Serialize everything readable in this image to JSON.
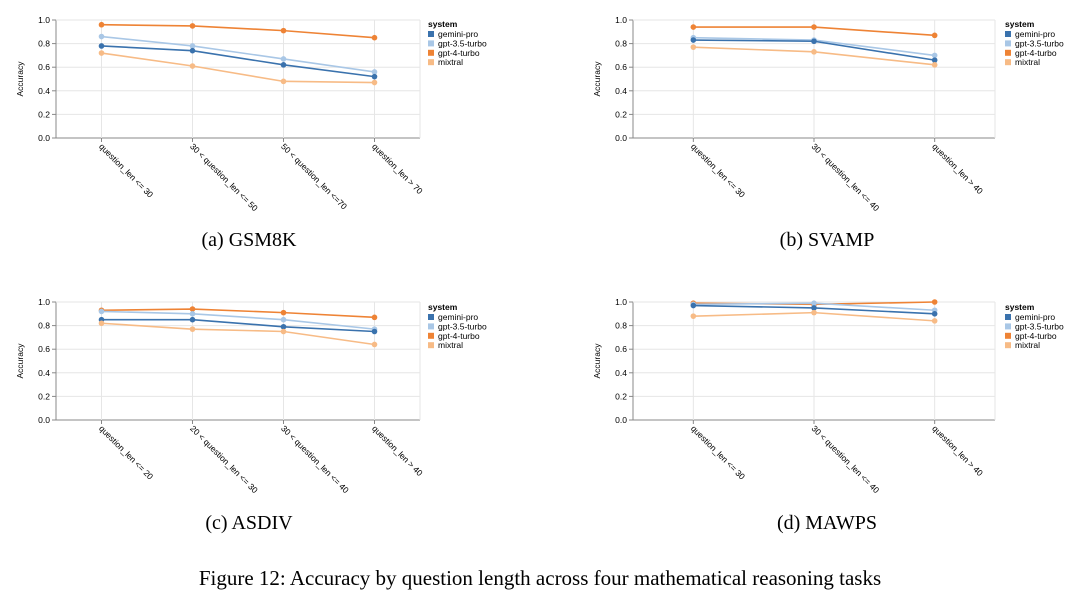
{
  "figure_caption": "Figure 12: Accuracy by question length across four mathematical reasoning tasks",
  "colors": {
    "gemini-pro": "#3a72ad",
    "gpt-3.5-turbo": "#a9c7e6",
    "gpt-4-turbo": "#ee8335",
    "mixtral": "#f7bb86"
  },
  "chart_data": [
    {
      "type": "line",
      "caption": "(a) GSM8K",
      "ylabel": "Accuracy",
      "ylim": [
        0,
        1
      ],
      "yticks": [
        "0.0",
        "0.2",
        "0.4",
        "0.6",
        "0.8",
        "1.0"
      ],
      "legend_title": "system",
      "categories": [
        "question_len <= 30",
        "30 < question_len <= 50",
        "50 < question_len <=70",
        "question_len > 70"
      ],
      "series": [
        {
          "name": "gemini-pro",
          "values": [
            0.78,
            0.74,
            0.62,
            0.52
          ]
        },
        {
          "name": "gpt-3.5-turbo",
          "values": [
            0.86,
            0.78,
            0.67,
            0.56
          ]
        },
        {
          "name": "gpt-4-turbo",
          "values": [
            0.96,
            0.95,
            0.91,
            0.85
          ]
        },
        {
          "name": "mixtral",
          "values": [
            0.72,
            0.61,
            0.48,
            0.47
          ]
        }
      ]
    },
    {
      "type": "line",
      "caption": "(b) SVAMP",
      "ylabel": "Accuracy",
      "ylim": [
        0,
        1
      ],
      "yticks": [
        "0.0",
        "0.2",
        "0.4",
        "0.6",
        "0.8",
        "1.0"
      ],
      "legend_title": "system",
      "categories": [
        "question_len <= 30",
        "30 < question_len <= 40",
        "question_len > 40"
      ],
      "series": [
        {
          "name": "gemini-pro",
          "values": [
            0.83,
            0.82,
            0.66
          ]
        },
        {
          "name": "gpt-3.5-turbo",
          "values": [
            0.85,
            0.83,
            0.7
          ]
        },
        {
          "name": "gpt-4-turbo",
          "values": [
            0.94,
            0.94,
            0.87
          ]
        },
        {
          "name": "mixtral",
          "values": [
            0.77,
            0.73,
            0.62
          ]
        }
      ]
    },
    {
      "type": "line",
      "caption": "(c) ASDIV",
      "ylabel": "Accuracy",
      "ylim": [
        0,
        1
      ],
      "yticks": [
        "0.0",
        "0.2",
        "0.4",
        "0.6",
        "0.8",
        "1.0"
      ],
      "legend_title": "system",
      "categories": [
        "question_len <= 20",
        "20 < question_len <= 30",
        "30 < question_len <= 40",
        "question_len > 40"
      ],
      "series": [
        {
          "name": "gemini-pro",
          "values": [
            0.85,
            0.85,
            0.79,
            0.75
          ]
        },
        {
          "name": "gpt-3.5-turbo",
          "values": [
            0.92,
            0.9,
            0.85,
            0.77
          ]
        },
        {
          "name": "gpt-4-turbo",
          "values": [
            0.93,
            0.94,
            0.91,
            0.87
          ]
        },
        {
          "name": "mixtral",
          "values": [
            0.82,
            0.77,
            0.75,
            0.64
          ]
        }
      ]
    },
    {
      "type": "line",
      "caption": "(d) MAWPS",
      "ylabel": "Accuracy",
      "ylim": [
        0,
        1
      ],
      "yticks": [
        "0.0",
        "0.2",
        "0.4",
        "0.6",
        "0.8",
        "1.0"
      ],
      "legend_title": "system",
      "categories": [
        "question_len <= 30",
        "30 < question_len <= 40",
        "question_len > 40"
      ],
      "series": [
        {
          "name": "gemini-pro",
          "values": [
            0.97,
            0.95,
            0.9
          ]
        },
        {
          "name": "gpt-3.5-turbo",
          "values": [
            0.98,
            0.99,
            0.93
          ]
        },
        {
          "name": "gpt-4-turbo",
          "values": [
            0.99,
            0.98,
            1.0
          ]
        },
        {
          "name": "mixtral",
          "values": [
            0.88,
            0.91,
            0.84
          ]
        }
      ]
    }
  ]
}
